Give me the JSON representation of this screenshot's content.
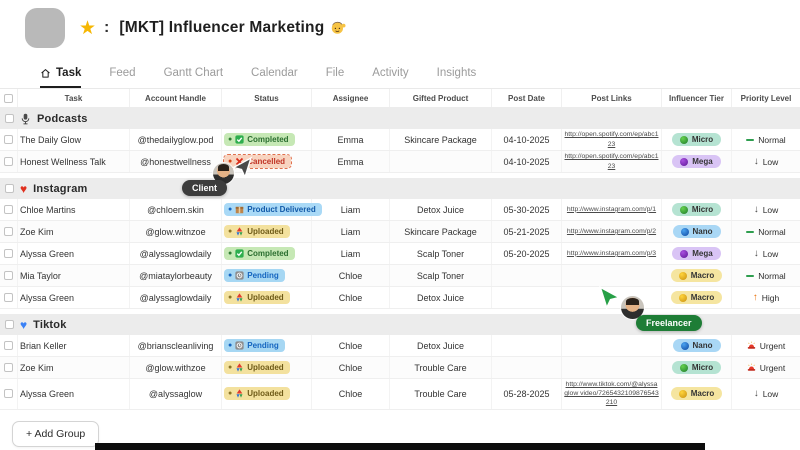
{
  "header": {
    "star": "★",
    "colon": ":",
    "title": "[MKT] Influencer Marketing",
    "title_emoji": "💁‍♀️"
  },
  "tabs": [
    {
      "label": "Task",
      "active": true,
      "icon": "home-icon"
    },
    {
      "label": "Feed",
      "active": false
    },
    {
      "label": "Gantt Chart",
      "active": false
    },
    {
      "label": "Calendar",
      "active": false
    },
    {
      "label": "File",
      "active": false
    },
    {
      "label": "Activity",
      "active": false
    },
    {
      "label": "Insights",
      "active": false
    }
  ],
  "table": {
    "columns": [
      "Task",
      "Account Handle",
      "Status",
      "Assignee",
      "Gifted Product",
      "Post Date",
      "Post Links",
      "Influencer Tier",
      "Priority Level"
    ]
  },
  "status_styles": {
    "Completed": {
      "bg": "#c6e8b5",
      "text": "#2a6e2f",
      "dot": "#2e7d32",
      "icon": "check"
    },
    "Cancelled": {
      "bg": "#f8d4c0",
      "text": "#c03425",
      "dot": "#d84315",
      "icon": "cross"
    },
    "Product Delivered": {
      "bg": "#a9d9f6",
      "text": "#1159a8",
      "dot": "#1565c0",
      "icon": "package"
    },
    "Uploaded": {
      "bg": "#f3e19e",
      "text": "#6e5a17",
      "dot": "#8a7426",
      "icon": "upload"
    },
    "Pending": {
      "bg": "#a6d7f3",
      "text": "#1565c0",
      "dot": "#1565c0",
      "icon": "pending"
    }
  },
  "tier_styles": {
    "Micro": {
      "bg": "#b5e3d2",
      "dot1": "#66d14e",
      "dot2": "#1d7a2c"
    },
    "Nano": {
      "bg": "#a9d7f5",
      "dot1": "#4aa3f0",
      "dot2": "#0d47a1"
    },
    "Mega": {
      "bg": "#d9c4f5",
      "dot1": "#a94fe0",
      "dot2": "#5e1796"
    },
    "Macro": {
      "bg": "#f5e5a0",
      "dot1": "#ffd43b",
      "dot2": "#c98f10"
    }
  },
  "priority_styles": {
    "Normal": {
      "icon": "dash",
      "color": "#2e9e4f"
    },
    "Low": {
      "icon": "down",
      "color": "#4a4a4a"
    },
    "High": {
      "icon": "up",
      "color": "#e8710a"
    },
    "Urgent": {
      "icon": "siren",
      "color": "#e03131"
    }
  },
  "groups": [
    {
      "name": "Podcasts",
      "emoji": "microphone",
      "rows": [
        {
          "task": "The Daily Glow",
          "handle": "@thedailyglow.pod",
          "status": "Completed",
          "assignee": "Emma",
          "product": "Skincare Package",
          "date": "04-10-2025",
          "link": "http://open.spotify.com/ep/abc123",
          "tier": "Micro",
          "priority": "Normal"
        },
        {
          "task": "Honest Wellness Talk",
          "handle": "@honestwellness",
          "status": "Cancelled",
          "status_selected": true,
          "assignee": "Emma",
          "product": "",
          "date": "04-10-2025",
          "link": "http://open.spotify.com/ep/abc123",
          "tier": "Mega",
          "priority": "Low"
        }
      ]
    },
    {
      "name": "Instagram",
      "emoji": "red-heart",
      "rows": [
        {
          "task": "Chloe Martins",
          "handle": "@chloem.skin",
          "status": "Product Delivered",
          "assignee": "Liam",
          "product": "Detox Juice",
          "date": "05-30-2025",
          "link": "http://www.instagram.com/p/1",
          "tier": "Micro",
          "priority": "Low"
        },
        {
          "task": "Zoe Kim",
          "handle": "@glow.witnzoe",
          "status": "Uploaded",
          "assignee": "Liam",
          "product": "Skincare Package",
          "date": "05-21-2025",
          "link": "http://www.instagram.com/p/2",
          "tier": "Nano",
          "priority": "Normal"
        },
        {
          "task": "Alyssa Green",
          "handle": "@alyssaglowdaily",
          "status": "Completed",
          "assignee": "Liam",
          "product": "Scalp Toner",
          "date": "05-20-2025",
          "link": "http://www.instagram.com/p/3",
          "tier": "Mega",
          "priority": "Low"
        },
        {
          "task": "Mia Taylor",
          "handle": "@miataylorbeauty",
          "status": "Pending",
          "assignee": "Chloe",
          "product": "Scalp Toner",
          "date": "",
          "link": "",
          "tier": "Macro",
          "priority": "Normal"
        },
        {
          "task": "Alyssa Green",
          "handle": "@alyssaglowdaily",
          "status": "Uploaded",
          "assignee": "Chloe",
          "product": "Detox Juice",
          "date": "",
          "link": "",
          "tier": "Macro",
          "priority": "High"
        }
      ]
    },
    {
      "name": "Tiktok",
      "emoji": "blue-heart",
      "rows": [
        {
          "task": "Brian Keller",
          "handle": "@brianscleanliving",
          "status": "Pending",
          "assignee": "Chloe",
          "product": "Detox Juice",
          "date": "",
          "link": "",
          "tier": "Nano",
          "priority": "Urgent"
        },
        {
          "task": "Zoe Kim",
          "handle": "@glow.withzoe",
          "status": "Uploaded",
          "assignee": "Chloe",
          "product": "Trouble Care",
          "date": "",
          "link": "",
          "tier": "Micro",
          "priority": "Urgent"
        },
        {
          "task": "Alyssa Green",
          "handle": "@alyssaglow",
          "status": "Uploaded",
          "assignee": "Chloe",
          "product": "Trouble Care",
          "date": "05-28-2025",
          "link": "http://www.tiktok.com/@alyssa glow video/7265432109876543210",
          "tier": "Macro",
          "priority": "Low"
        }
      ]
    }
  ],
  "collaborators": [
    {
      "label": "Client",
      "pill_color": "#3d3d3d",
      "arrow_color": "#4a4a4a"
    },
    {
      "label": "Freelancer",
      "pill_color": "#1e7d36",
      "arrow_color": "#27a047"
    }
  ],
  "add_group_label": "+ Add Group"
}
